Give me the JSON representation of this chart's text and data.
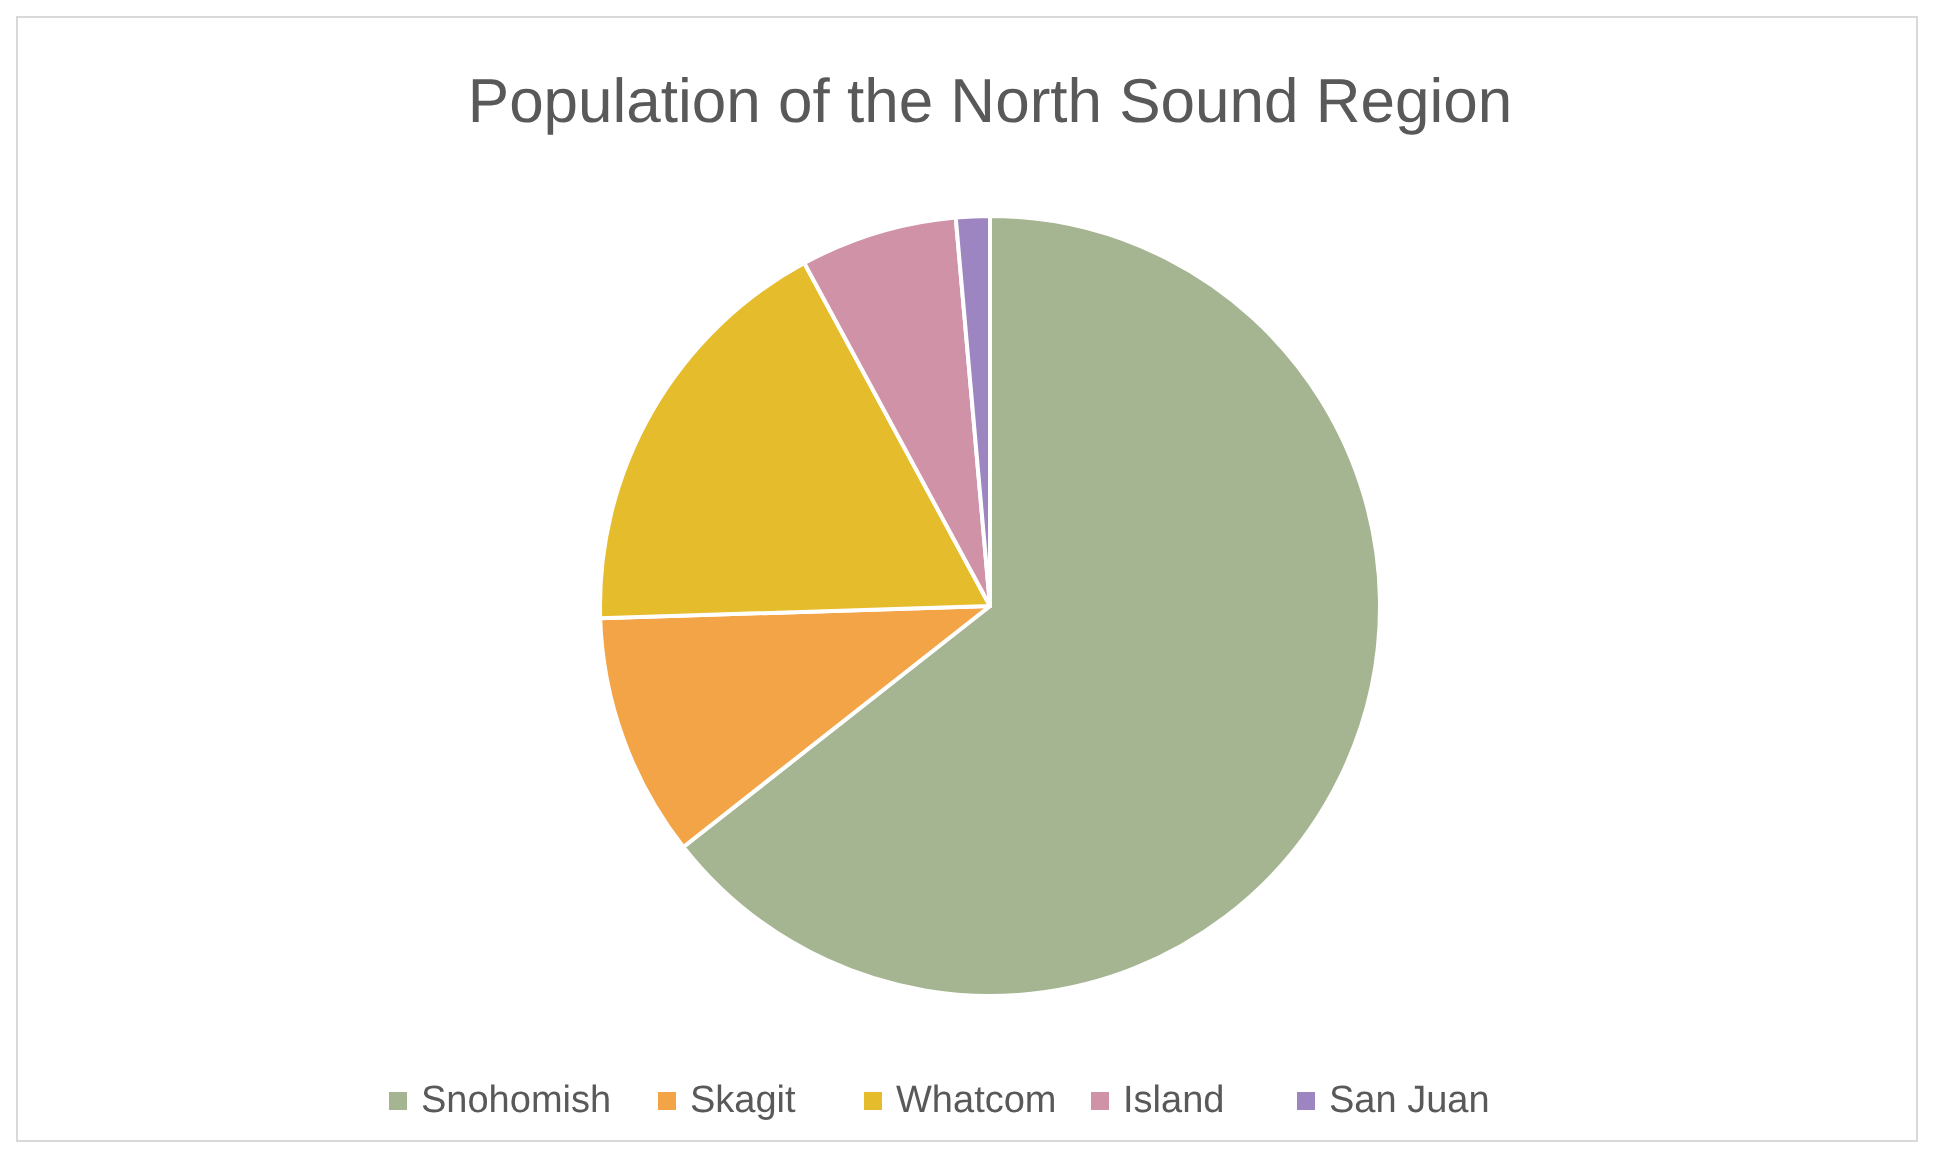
{
  "chart_data": {
    "type": "pie",
    "title": "Population of the North Sound Region",
    "categories": [
      "Snohomish",
      "Skagit",
      "Whatcom",
      "Island",
      "San Juan"
    ],
    "values": [
      64.4,
      10.1,
      17.6,
      6.5,
      1.4
    ],
    "colors": [
      "#a5b592",
      "#f3a447",
      "#e5bc2b",
      "#d092a7",
      "#9c85c0"
    ],
    "legend": "bottom"
  }
}
